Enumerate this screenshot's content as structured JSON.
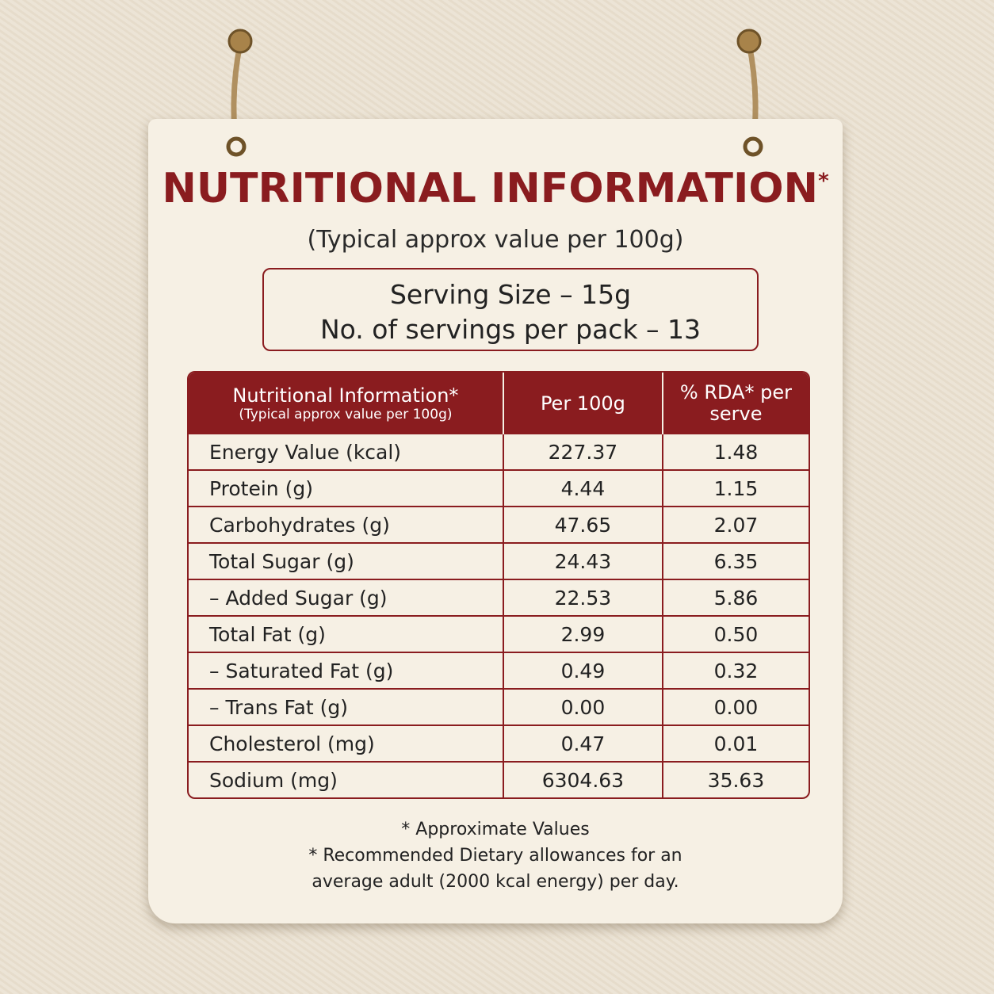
{
  "header": {
    "title": "NUTRITIONAL INFORMATION",
    "title_note": "*",
    "subtitle": "(Typical approx value per 100g)"
  },
  "serving": {
    "size": "Serving Size – 15g",
    "servings": "No. of servings per pack – 13"
  },
  "table": {
    "columns": [
      {
        "label": "Nutritional Information*",
        "sublabel": "(Typical approx value per 100g)"
      },
      {
        "label": "Per 100g"
      },
      {
        "label": "% RDA* per serve"
      }
    ],
    "rows": [
      [
        "Energy Value (kcal)",
        "227.37",
        "1.48"
      ],
      [
        "Protein (g)",
        "4.44",
        "1.15"
      ],
      [
        "Carbohydrates (g)",
        "47.65",
        "2.07"
      ],
      [
        "Total Sugar (g)",
        "24.43",
        "6.35"
      ],
      [
        "– Added Sugar (g)",
        "22.53",
        "5.86"
      ],
      [
        "Total Fat (g)",
        "2.99",
        "0.50"
      ],
      [
        "– Saturated Fat (g)",
        "0.49",
        "0.32"
      ],
      [
        "– Trans Fat (g)",
        "0.00",
        "0.00"
      ],
      [
        "Cholesterol (mg)",
        "0.47",
        "0.01"
      ],
      [
        "Sodium (mg)",
        "6304.63",
        "35.63"
      ]
    ]
  },
  "footnotes": [
    "* Approximate Values",
    "* Recommended Dietary allowances for an average adult (2000 kcal energy) per day."
  ]
}
